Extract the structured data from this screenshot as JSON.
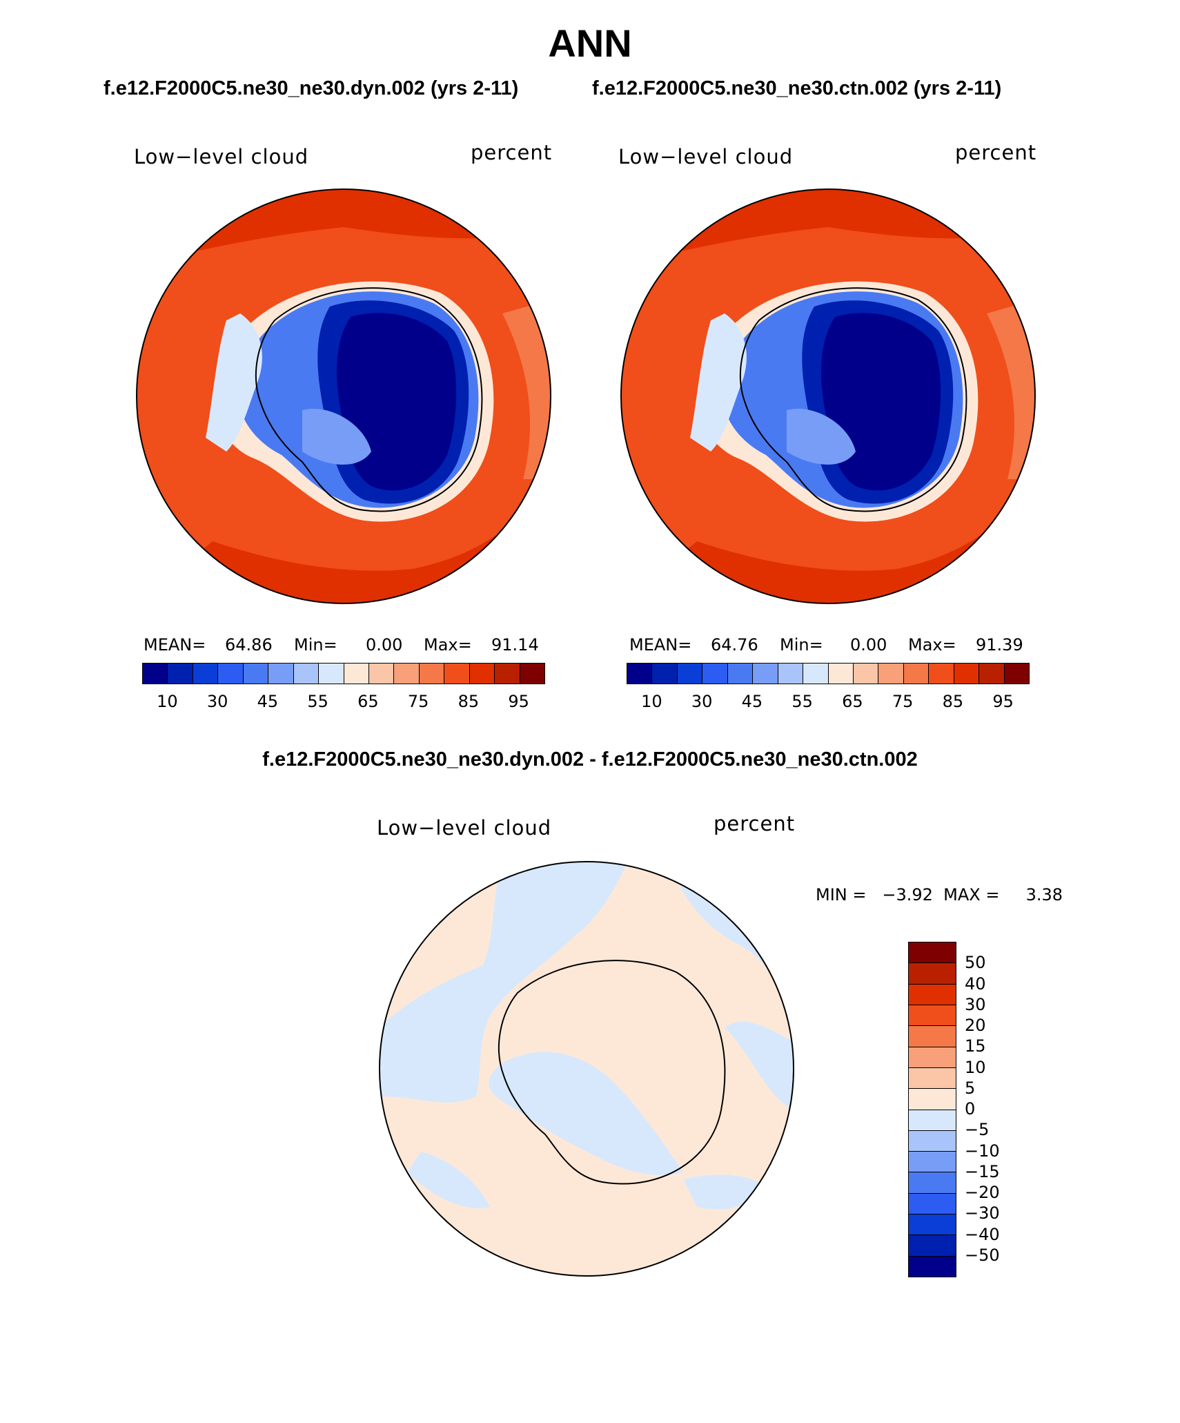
{
  "title": "ANN",
  "top_labels": {
    "left_case": "f.e12.F2000C5.ne30_ne30.dyn.002 (yrs 2-11)",
    "right_case": "f.e12.F2000C5.ne30_ne30.ctn.002 (yrs 2-11)"
  },
  "panel_left": {
    "variable": "Low−level cloud",
    "units": "percent",
    "stats": {
      "mean_label": "MEAN=",
      "mean": "64.86",
      "min_label": "Min=",
      "min": "0.00",
      "max_label": "Max=",
      "max": "91.14"
    }
  },
  "panel_right": {
    "variable": "Low−level cloud",
    "units": "percent",
    "stats": {
      "mean_label": "MEAN=",
      "mean": "64.76",
      "min_label": "Min=",
      "min": "0.00",
      "max_label": "Max=",
      "max": "91.39"
    }
  },
  "abs_colorbar": {
    "colors": [
      "#00008b",
      "#0020b0",
      "#0b3ed6",
      "#2d5cf2",
      "#4a7af2",
      "#789df7",
      "#a9c4fa",
      "#d8e8fc",
      "#fde8d8",
      "#fbc6a8",
      "#f8a07a",
      "#f47848",
      "#f04e1a",
      "#e03000",
      "#b82000",
      "#7f0000"
    ],
    "ticks": [
      "10",
      "30",
      "45",
      "55",
      "65",
      "75",
      "85",
      "95"
    ]
  },
  "diff_title": "f.e12.F2000C5.ne30_ne30.dyn.002 - f.e12.F2000C5.ne30_ne30.ctn.002",
  "panel_diff": {
    "variable": "Low−level cloud",
    "units": "percent",
    "stats_text": "MIN =   −3.92  MAX =     3.38"
  },
  "diff_colorbar": {
    "colors": [
      "#7f0000",
      "#b82000",
      "#e03000",
      "#f04e1a",
      "#f47848",
      "#f8a07a",
      "#fbc6a8",
      "#fde8d8",
      "#d8e8fc",
      "#a9c4fa",
      "#789df7",
      "#4a7af2",
      "#2d5cf2",
      "#0b3ed6",
      "#0020b0",
      "#00008b"
    ],
    "ticks": [
      "50",
      "40",
      "30",
      "20",
      "15",
      "10",
      "5",
      "0",
      "−5",
      "−10",
      "−15",
      "−20",
      "−30",
      "−40",
      "−50"
    ]
  }
}
